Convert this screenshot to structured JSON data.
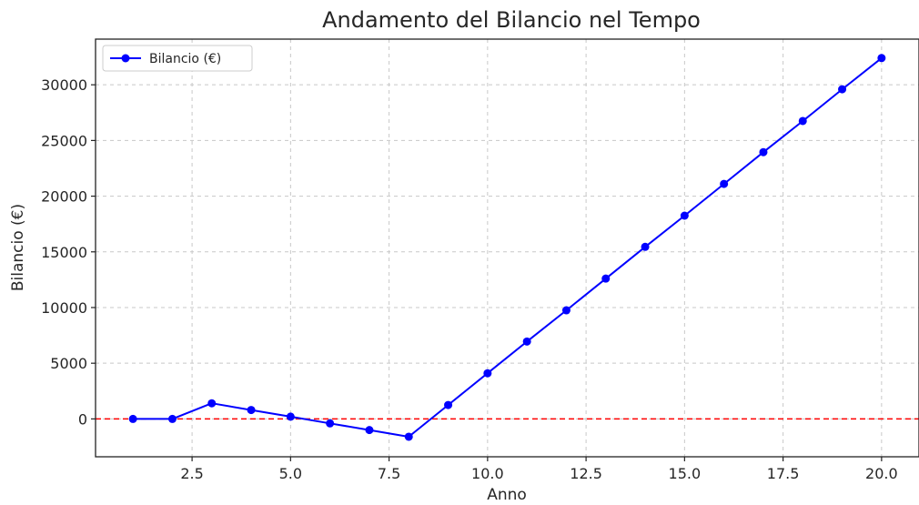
{
  "chart_data": {
    "type": "line",
    "title": "Andamento del Bilancio nel Tempo",
    "xlabel": "Anno",
    "ylabel": "Bilancio (€)",
    "xlim": [
      0.05,
      20.95
    ],
    "ylim": [
      -3400,
      34100
    ],
    "xticks": [
      2.5,
      5.0,
      7.5,
      10.0,
      12.5,
      15.0,
      17.5,
      20.0
    ],
    "xtick_labels": [
      "2.5",
      "5.0",
      "7.5",
      "10.0",
      "12.5",
      "15.0",
      "17.5",
      "20.0"
    ],
    "yticks": [
      0,
      5000,
      10000,
      15000,
      20000,
      25000,
      30000
    ],
    "ytick_labels": [
      "0",
      "5000",
      "10000",
      "15000",
      "20000",
      "25000",
      "30000"
    ],
    "grid": true,
    "legend_position": "top-left",
    "reference_line": {
      "y": 0,
      "color": "#ff0000",
      "style": "dashed"
    },
    "series": [
      {
        "name": "Bilancio (€)",
        "color": "#0000ff",
        "marker": "circle",
        "x": [
          1,
          2,
          3,
          4,
          5,
          6,
          7,
          8,
          9,
          10,
          11,
          12,
          13,
          14,
          15,
          16,
          17,
          18,
          19,
          20
        ],
        "y": [
          0,
          0,
          1400,
          800,
          200,
          -400,
          -1000,
          -1600,
          1250,
          4100,
          6950,
          9750,
          12600,
          15450,
          18250,
          21100,
          23950,
          26750,
          29600,
          32400
        ]
      }
    ]
  }
}
